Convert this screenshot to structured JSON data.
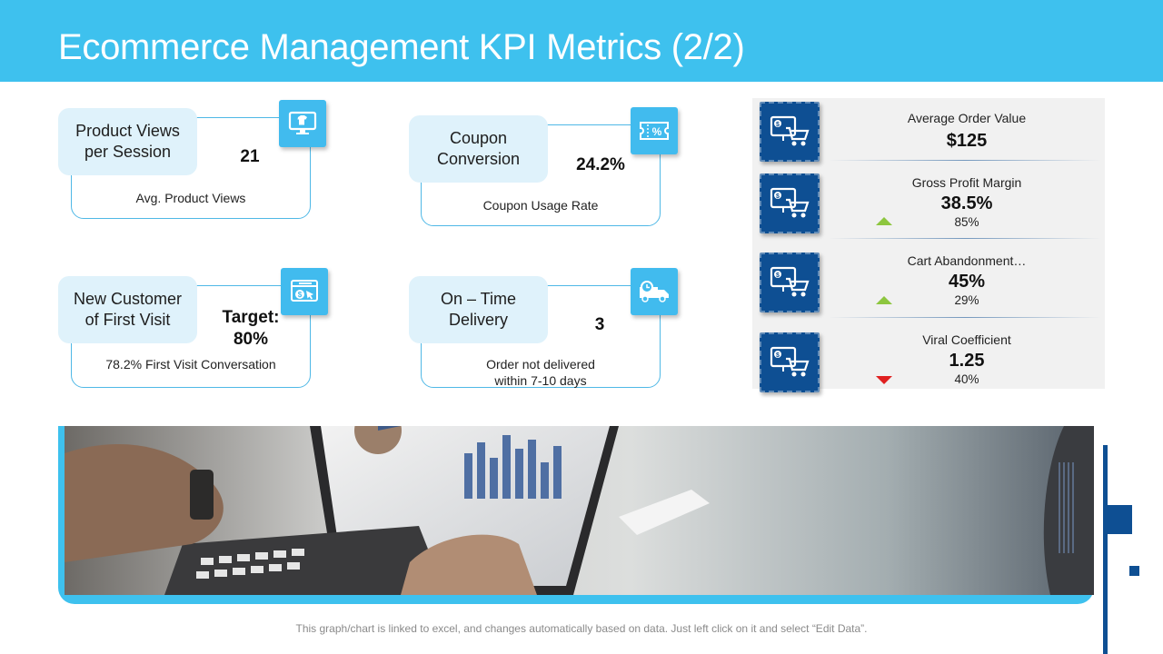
{
  "title": "Ecommerce Management KPI Metrics (2/2)",
  "colors": {
    "header": "#3ec1ee",
    "accent_dark": "#0e4f93",
    "label_bg": "#dff2fb",
    "up": "#8dc63f",
    "down": "#e02020"
  },
  "cards": [
    {
      "label": "Product Views\nper Session",
      "value": "21",
      "desc": "Avg. Product Views",
      "icon": "monitor-shirt-icon"
    },
    {
      "label": "Coupon\nConversion",
      "value": "24.2%",
      "desc": "Coupon Usage Rate",
      "icon": "coupon-percent-icon"
    },
    {
      "label": "New Customer\nof First Visit",
      "value": "Target:\n80%",
      "desc": "78.2% First Visit Conversation",
      "icon": "browser-dollar-icon"
    },
    {
      "label": "On – Time\nDelivery",
      "value": "3",
      "desc": "Order not delivered\nwithin 7-10 days",
      "icon": "delivery-truck-icon"
    }
  ],
  "metrics": [
    {
      "name": "Average Order Value",
      "value": "$125",
      "percent": "",
      "trend": "none",
      "icon": "monitor-cart-icon"
    },
    {
      "name": "Gross Profit Margin",
      "value": "38.5%",
      "percent": "85%",
      "trend": "up",
      "icon": "monitor-cart-icon"
    },
    {
      "name": "Cart Abandonment…",
      "value": "45%",
      "percent": "29%",
      "trend": "up",
      "icon": "monitor-cart-icon"
    },
    {
      "name": "Viral Coefficient",
      "value": "1.25",
      "percent": "40%",
      "trend": "down",
      "icon": "monitor-cart-icon"
    }
  ],
  "footer": "This graph/chart is linked to excel, and changes automatically based on data. Just left click on it and select “Edit Data”."
}
